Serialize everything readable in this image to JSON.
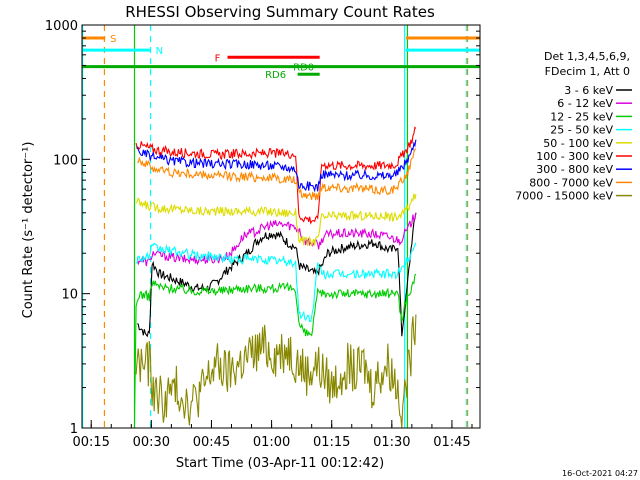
{
  "chart_data": {
    "type": "line",
    "title": "RHESSI Observing Summary Count Rates",
    "xlabel": "Start Time (03-Apr-11 00:12:42)",
    "ylabel": "Count Rate (s⁻¹ detector⁻¹)",
    "ylog": true,
    "ylim": [
      1,
      1000
    ],
    "xlim": [
      12.7,
      112
    ],
    "xticks": [
      {
        "m": 15,
        "label": "00:15"
      },
      {
        "m": 30,
        "label": "00:30"
      },
      {
        "m": 45,
        "label": "00:45"
      },
      {
        "m": 60,
        "label": "01:00"
      },
      {
        "m": 75,
        "label": "01:15"
      },
      {
        "m": 90,
        "label": "01:30"
      },
      {
        "m": 105,
        "label": "01:45"
      }
    ],
    "yticks": [
      {
        "v": 1,
        "label": "1"
      },
      {
        "v": 10,
        "label": "10"
      },
      {
        "v": 100,
        "label": "100"
      },
      {
        "v": 1000,
        "label": "1000"
      }
    ],
    "legend": {
      "position": "right",
      "header": [
        "Det 1,3,4,5,6,9,",
        "FDecim 1, Att 0"
      ]
    },
    "footer_date": "16-Oct-2021 04:27",
    "series": [
      {
        "name": "3 - 6 keV",
        "color": "#000000",
        "points": [
          [
            26.5,
            6
          ],
          [
            27.5,
            5.5
          ],
          [
            28.5,
            5
          ],
          [
            29.5,
            5
          ],
          [
            30.2,
            17
          ],
          [
            32,
            14
          ],
          [
            35,
            13
          ],
          [
            38,
            12
          ],
          [
            41,
            11
          ],
          [
            44,
            11
          ],
          [
            46,
            12
          ],
          [
            48,
            14
          ],
          [
            50,
            16
          ],
          [
            52,
            18
          ],
          [
            54,
            20
          ],
          [
            56,
            24
          ],
          [
            58,
            27
          ],
          [
            60,
            28
          ],
          [
            62,
            27
          ],
          [
            64,
            24
          ],
          [
            66,
            22
          ],
          [
            67,
            16
          ],
          [
            69,
            15
          ],
          [
            71,
            14
          ],
          [
            72.5,
            16
          ],
          [
            74,
            20
          ],
          [
            78,
            22
          ],
          [
            82,
            23
          ],
          [
            86,
            24
          ],
          [
            88,
            22
          ],
          [
            90,
            21
          ],
          [
            91.5,
            23
          ],
          [
            92.5,
            5
          ],
          [
            93.5,
            9
          ],
          [
            95,
            25
          ],
          [
            96,
            40
          ]
        ]
      },
      {
        "name": "6 - 12 keV",
        "color": "#dd00dd",
        "points": [
          [
            26.5,
            18
          ],
          [
            29.5,
            17
          ],
          [
            30.2,
            20
          ],
          [
            34,
            19
          ],
          [
            38,
            18
          ],
          [
            42,
            18
          ],
          [
            46,
            18
          ],
          [
            49,
            19
          ],
          [
            51,
            22
          ],
          [
            53,
            27
          ],
          [
            56,
            29
          ],
          [
            59,
            32
          ],
          [
            62,
            33
          ],
          [
            65,
            32
          ],
          [
            67,
            30
          ],
          [
            68,
            25
          ],
          [
            70,
            24
          ],
          [
            72,
            23
          ],
          [
            73,
            27
          ],
          [
            76,
            28
          ],
          [
            80,
            28
          ],
          [
            84,
            28
          ],
          [
            88,
            27
          ],
          [
            90,
            26
          ],
          [
            92,
            25
          ],
          [
            94,
            30
          ],
          [
            96,
            40
          ]
        ]
      },
      {
        "name": "12 - 25 keV",
        "color": "#00cc00",
        "points": [
          [
            25.8,
            1
          ],
          [
            26.2,
            8
          ],
          [
            27,
            10
          ],
          [
            29.5,
            9.5
          ],
          [
            30.2,
            12
          ],
          [
            33,
            11
          ],
          [
            36,
            11
          ],
          [
            40,
            10.5
          ],
          [
            44,
            10.5
          ],
          [
            48,
            10.5
          ],
          [
            52,
            11
          ],
          [
            56,
            11
          ],
          [
            60,
            11
          ],
          [
            64,
            11
          ],
          [
            66,
            11
          ],
          [
            66.8,
            6
          ],
          [
            68.5,
            5
          ],
          [
            70,
            5
          ],
          [
            71.5,
            10
          ],
          [
            73,
            10
          ],
          [
            76,
            10
          ],
          [
            80,
            10
          ],
          [
            84,
            10
          ],
          [
            88,
            10
          ],
          [
            90,
            10
          ],
          [
            91.5,
            10.5
          ],
          [
            92.5,
            6
          ],
          [
            93.5,
            9
          ],
          [
            95,
            11
          ],
          [
            96,
            14
          ]
        ]
      },
      {
        "name": "25 - 50 keV",
        "color": "#00ffff",
        "points": [
          [
            26.2,
            18
          ],
          [
            29.5,
            19
          ],
          [
            30.2,
            22
          ],
          [
            34,
            21
          ],
          [
            38,
            20
          ],
          [
            42,
            19
          ],
          [
            46,
            19
          ],
          [
            50,
            18
          ],
          [
            54,
            18
          ],
          [
            58,
            18
          ],
          [
            62,
            17.5
          ],
          [
            66,
            17
          ],
          [
            66.8,
            7
          ],
          [
            70,
            6.5
          ],
          [
            71.5,
            16
          ],
          [
            73,
            14
          ],
          [
            76,
            14
          ],
          [
            80,
            14
          ],
          [
            84,
            14
          ],
          [
            88,
            14
          ],
          [
            91,
            14
          ],
          [
            92.5,
            15
          ],
          [
            94,
            18
          ],
          [
            96,
            24
          ]
        ]
      },
      {
        "name": "50 - 100 keV",
        "color": "#dddd00",
        "points": [
          [
            26.2,
            48
          ],
          [
            28,
            46
          ],
          [
            31,
            44
          ],
          [
            35,
            43
          ],
          [
            39,
            42
          ],
          [
            43,
            41
          ],
          [
            47,
            41
          ],
          [
            51,
            41
          ],
          [
            55,
            41
          ],
          [
            59,
            41
          ],
          [
            63,
            40
          ],
          [
            66,
            40
          ],
          [
            66.8,
            26
          ],
          [
            69,
            24
          ],
          [
            71.5,
            25
          ],
          [
            72.5,
            37
          ],
          [
            76,
            38
          ],
          [
            80,
            38
          ],
          [
            84,
            38
          ],
          [
            88,
            38
          ],
          [
            91,
            37
          ],
          [
            93,
            40
          ],
          [
            95,
            48
          ],
          [
            96,
            55
          ]
        ]
      },
      {
        "name": "100 - 300 keV",
        "color": "#ff0000",
        "points": [
          [
            26.2,
            130
          ],
          [
            28,
            125
          ],
          [
            31,
            118
          ],
          [
            35,
            113
          ],
          [
            39,
            112
          ],
          [
            43,
            110
          ],
          [
            47,
            108
          ],
          [
            51,
            110
          ],
          [
            55,
            110
          ],
          [
            59,
            111
          ],
          [
            63,
            110
          ],
          [
            66,
            110
          ],
          [
            66.8,
            38
          ],
          [
            69,
            36
          ],
          [
            71.5,
            35
          ],
          [
            72.5,
            92
          ],
          [
            76,
            90
          ],
          [
            80,
            90
          ],
          [
            84,
            90
          ],
          [
            88,
            90
          ],
          [
            91,
            92
          ],
          [
            93,
            110
          ],
          [
            95,
            140
          ],
          [
            96,
            170
          ]
        ]
      },
      {
        "name": "300 - 800 keV",
        "color": "#0000ff",
        "points": [
          [
            26.5,
            118
          ],
          [
            28,
            110
          ],
          [
            31,
            103
          ],
          [
            35,
            97
          ],
          [
            39,
            95
          ],
          [
            43,
            93
          ],
          [
            47,
            92
          ],
          [
            51,
            92
          ],
          [
            55,
            92
          ],
          [
            59,
            90
          ],
          [
            63,
            88
          ],
          [
            66,
            85
          ],
          [
            66.8,
            64
          ],
          [
            70,
            63
          ],
          [
            71.5,
            62
          ],
          [
            72.5,
            78
          ],
          [
            76,
            76
          ],
          [
            80,
            76
          ],
          [
            84,
            76
          ],
          [
            88,
            75
          ],
          [
            91,
            77
          ],
          [
            93,
            90
          ],
          [
            95,
            115
          ],
          [
            96,
            140
          ]
        ]
      },
      {
        "name": "800 - 7000 keV",
        "color": "#ff8800",
        "points": [
          [
            26.5,
            103
          ],
          [
            28,
            94
          ],
          [
            31,
            85
          ],
          [
            35,
            80
          ],
          [
            39,
            78
          ],
          [
            43,
            76
          ],
          [
            47,
            75
          ],
          [
            51,
            75
          ],
          [
            55,
            74
          ],
          [
            59,
            73
          ],
          [
            63,
            71
          ],
          [
            66,
            70
          ],
          [
            66.8,
            55
          ],
          [
            70,
            54
          ],
          [
            71.5,
            53
          ],
          [
            72.5,
            63
          ],
          [
            76,
            62
          ],
          [
            80,
            61
          ],
          [
            84,
            60
          ],
          [
            88,
            59
          ],
          [
            91,
            60
          ],
          [
            93,
            72
          ],
          [
            95,
            95
          ],
          [
            96,
            120
          ]
        ]
      },
      {
        "name": "7000 - 15000 keV",
        "color": "#888800",
        "points": [
          [
            26.2,
            3
          ],
          [
            27.5,
            3
          ],
          [
            29.5,
            3
          ],
          [
            30.2,
            2
          ],
          [
            33,
            1.6
          ],
          [
            36,
            2
          ],
          [
            40,
            1.5
          ],
          [
            43,
            2
          ],
          [
            46,
            3
          ],
          [
            49,
            2.5
          ],
          [
            52,
            3
          ],
          [
            55,
            3.5
          ],
          [
            58,
            4
          ],
          [
            61,
            3.5
          ],
          [
            64,
            4
          ],
          [
            66,
            3.2
          ],
          [
            67,
            3
          ],
          [
            69,
            2.5
          ],
          [
            71,
            3
          ],
          [
            73,
            2.5
          ],
          [
            75,
            2
          ],
          [
            77,
            2.5
          ],
          [
            79,
            3
          ],
          [
            81,
            2.5
          ],
          [
            83,
            3
          ],
          [
            85,
            2
          ],
          [
            87,
            2.5
          ],
          [
            89,
            3
          ],
          [
            91,
            2.2
          ],
          [
            92.5,
            1.5
          ],
          [
            93.5,
            2
          ],
          [
            95,
            4
          ],
          [
            96,
            7
          ]
        ]
      }
    ],
    "state_bars": [
      {
        "label": "S",
        "color": "#ff8800",
        "y": 800,
        "x": [
          12.7,
          18.5
        ],
        "label_at": 20.5
      },
      {
        "label": "N",
        "color": "#00ffff",
        "y": 650,
        "x": [
          12.7,
          29.8
        ],
        "label_at": 32
      },
      {
        "label": "F",
        "color": "#ff0000",
        "y": 575,
        "x": [
          49,
          72
        ],
        "label_at": 46.5
      },
      {
        "label": "RD0",
        "color": "#00aa00",
        "y": 490,
        "x": [
          12.7,
          112
        ],
        "label_at": 68
      },
      {
        "label": "RD6",
        "color": "#00aa00",
        "y": 430,
        "x": [
          66.5,
          72
        ],
        "label_at": 61
      },
      {
        "label": "",
        "color": "#ff8800",
        "y": 800,
        "x": [
          93.5,
          112
        ],
        "label_at": null
      },
      {
        "label": "",
        "color": "#00ffff",
        "y": 650,
        "x": [
          93.5,
          112
        ],
        "label_at": null
      }
    ],
    "vertical_markers": [
      {
        "m": 18.3,
        "color": "#ff8800",
        "style": "dashed"
      },
      {
        "m": 29.8,
        "color": "#00ffff",
        "style": "dashed"
      },
      {
        "m": 25.8,
        "color": "#00cc00",
        "style": "solid"
      },
      {
        "m": 93.2,
        "color": "#00ffff",
        "style": "solid"
      },
      {
        "m": 93.9,
        "color": "#00cc00",
        "style": "solid"
      },
      {
        "m": 108.6,
        "color": "#00ffff",
        "style": "dashed"
      },
      {
        "m": 108.9,
        "color": "#ff8800",
        "style": "dashed"
      },
      {
        "m": 12.85,
        "color": "#00ffff",
        "style": "solid"
      }
    ]
  }
}
